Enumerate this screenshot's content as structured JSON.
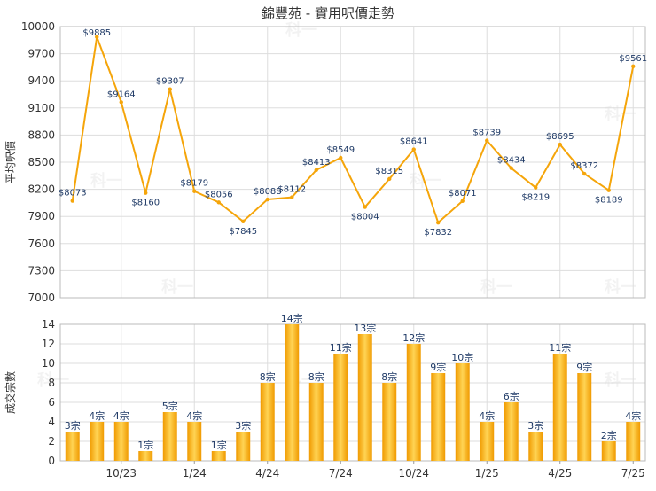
{
  "title": "錦豐苑 - 實用呎價走勢",
  "watermark": "科一",
  "colors": {
    "line": "#f5a50a",
    "bar_light": "#ffd454",
    "bar_dark": "#f09a00",
    "label": "#1f3a66",
    "grid": "#dddddd"
  },
  "chart_data": [
    {
      "type": "line",
      "ylabel": "平均呎價",
      "ylim": [
        7000,
        10000
      ],
      "yticks": [
        7000,
        7300,
        7600,
        7900,
        8200,
        8500,
        8800,
        9100,
        9400,
        9700,
        10000
      ],
      "grid": true,
      "values": [
        8073,
        9885,
        9164,
        8160,
        9307,
        8179,
        8056,
        7845,
        8088,
        8112,
        8413,
        8549,
        8004,
        8315,
        8641,
        7832,
        8071,
        8739,
        8434,
        8219,
        8695,
        8372,
        8189,
        9561
      ],
      "data_labels": [
        "$8073",
        "$9885",
        "$9164",
        "$8160",
        "$9307",
        "$8179",
        "$8056",
        "$7845",
        "$8088",
        "$8112",
        "$8413",
        "$8549",
        "$8004",
        "$8315",
        "$8641",
        "$7832",
        "$8071",
        "$8739",
        "$8434",
        "$8219",
        "$8695",
        "$8372",
        "$8189",
        "$9561"
      ]
    },
    {
      "type": "bar",
      "ylabel": "成交宗數",
      "ylim": [
        0,
        14
      ],
      "yticks": [
        0,
        2,
        4,
        6,
        8,
        10,
        12,
        14
      ],
      "grid": true,
      "values": [
        3,
        4,
        4,
        1,
        5,
        4,
        1,
        3,
        8,
        14,
        8,
        11,
        13,
        8,
        12,
        9,
        10,
        4,
        6,
        3,
        11,
        9,
        2,
        4
      ],
      "data_labels": [
        "3宗",
        "4宗",
        "4宗",
        "1宗",
        "5宗",
        "4宗",
        "1宗",
        "3宗",
        "8宗",
        "14宗",
        "8宗",
        "11宗",
        "13宗",
        "8宗",
        "12宗",
        "9宗",
        "10宗",
        "4宗",
        "6宗",
        "3宗",
        "11宗",
        "9宗",
        "2宗",
        "4宗"
      ],
      "xticks": [
        {
          "index": 2,
          "label": "10/23"
        },
        {
          "index": 5,
          "label": "1/24"
        },
        {
          "index": 8,
          "label": "4/24"
        },
        {
          "index": 11,
          "label": "7/24"
        },
        {
          "index": 14,
          "label": "10/24"
        },
        {
          "index": 17,
          "label": "1/25"
        },
        {
          "index": 20,
          "label": "4/25"
        },
        {
          "index": 23,
          "label": "7/25"
        }
      ]
    }
  ]
}
